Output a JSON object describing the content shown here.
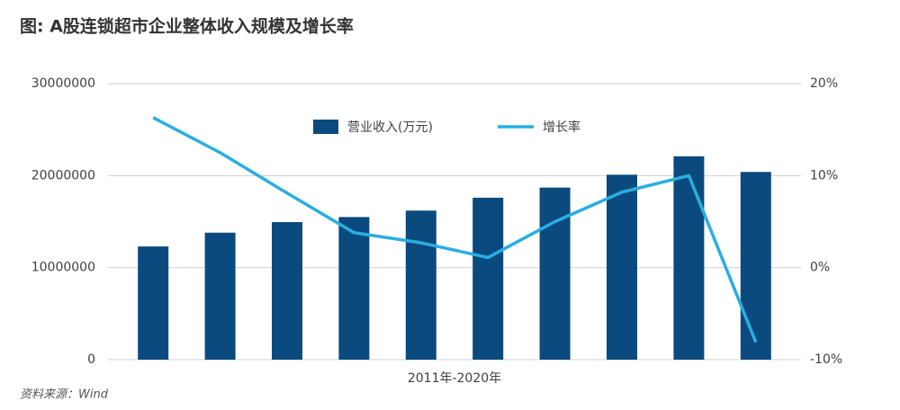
{
  "chart_data": {
    "type": "bar_line",
    "title": "图: A股连锁超市企业整体收入规模及增长率",
    "x_label": "2011年-2020年",
    "source": "资料来源：Wind",
    "categories": [
      null,
      null,
      null,
      null,
      null,
      null,
      null,
      null,
      null,
      null
    ],
    "series": [
      {
        "name": "营业收入(万元)",
        "color": "#0b4a7e",
        "type": "bar",
        "values": [
          12300000,
          13800000,
          14950000,
          15500000,
          16200000,
          17600000,
          18700000,
          20100000,
          22100000,
          20400000
        ]
      },
      {
        "name": "增长率",
        "color": "#2aaee0",
        "type": "line",
        "axis": "y2",
        "values": [
          16.3,
          12.5,
          8.1,
          3.8,
          2.7,
          1.1,
          5.0,
          8.2,
          10.0,
          -8.1
        ]
      }
    ],
    "ylim": [
      0,
      30000000
    ],
    "yticks": [
      0,
      10000000,
      20000000,
      30000000
    ],
    "y2lim": [
      -10,
      20
    ],
    "y2ticks": [
      {
        "value": -10,
        "label": "-10%"
      },
      {
        "value": 0,
        "label": "0%"
      },
      {
        "value": 10,
        "label": "10%"
      },
      {
        "value": 20,
        "label": "20%"
      }
    ],
    "grid": true
  }
}
